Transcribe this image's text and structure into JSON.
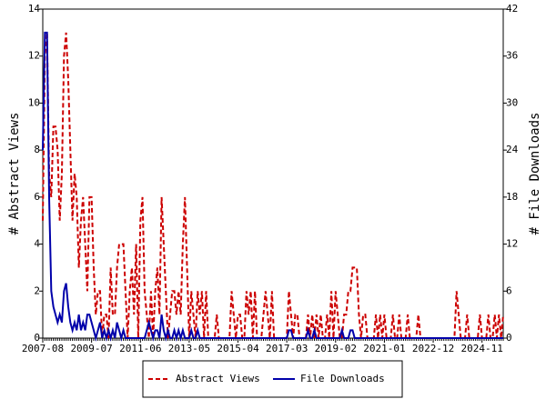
{
  "chart_data": {
    "type": "line",
    "categories": [
      "2007-08",
      null,
      null,
      null,
      null,
      null,
      null,
      null,
      null,
      null,
      null,
      null,
      null,
      null,
      null,
      null,
      null,
      null,
      null,
      null,
      null,
      null,
      null,
      "2009-07",
      null,
      null,
      null,
      null,
      null,
      null,
      null,
      null,
      null,
      null,
      null,
      null,
      null,
      null,
      null,
      null,
      null,
      null,
      null,
      null,
      null,
      null,
      "2011-06",
      null,
      null,
      null,
      null,
      null,
      null,
      null,
      null,
      null,
      null,
      null,
      null,
      null,
      null,
      null,
      null,
      null,
      null,
      null,
      null,
      null,
      null,
      "2013-05",
      null,
      null,
      null,
      null,
      null,
      null,
      null,
      null,
      null,
      null,
      null,
      null,
      null,
      null,
      null,
      null,
      null,
      null,
      null,
      null,
      null,
      null,
      "2015-04",
      null,
      null,
      null,
      null,
      null,
      null,
      null,
      null,
      null,
      null,
      null,
      null,
      null,
      null,
      null,
      null,
      null,
      null,
      null,
      null,
      null,
      null,
      "2017-03",
      null,
      null,
      null,
      null,
      null,
      null,
      null,
      null,
      null,
      null,
      null,
      null,
      null,
      null,
      null,
      null,
      null,
      null,
      null,
      null,
      null,
      null,
      "2019-02",
      null,
      null,
      null,
      null,
      null,
      null,
      null,
      null,
      null,
      null,
      null,
      null,
      null,
      null,
      null,
      null,
      null,
      null,
      null,
      null,
      null,
      null,
      "2021-01",
      null,
      null,
      null,
      null,
      null,
      null,
      null,
      null,
      null,
      null,
      null,
      null,
      null,
      null,
      null,
      null,
      null,
      null,
      null,
      null,
      null,
      null,
      "2022-12",
      null,
      null,
      null,
      null,
      null,
      null,
      null,
      null,
      null,
      null,
      null,
      null,
      null,
      null,
      null,
      null,
      null,
      null,
      null,
      null,
      null,
      null,
      "2024-11",
      null,
      null,
      null,
      null,
      null,
      null,
      null,
      null,
      null,
      null
    ],
    "series": [
      {
        "name": "Abstract Views",
        "color": "#cc0000",
        "dashed": true,
        "values": [
          5,
          12,
          13,
          7,
          6,
          9,
          9,
          8,
          5,
          7,
          12,
          13,
          11,
          8,
          5,
          7,
          6,
          3,
          5,
          6,
          4,
          2,
          6,
          6,
          3,
          1,
          2,
          2,
          0,
          1,
          1,
          0,
          3,
          1,
          1,
          3,
          4,
          4,
          4,
          2,
          0,
          2,
          3,
          1,
          4,
          0,
          5,
          6,
          2,
          1,
          0,
          2,
          0,
          2,
          3,
          1,
          6,
          4,
          2,
          0,
          1,
          2,
          2,
          1,
          2,
          1,
          4,
          6,
          3,
          0,
          2,
          1,
          0,
          2,
          1,
          2,
          0,
          2,
          0,
          0,
          0,
          0,
          1,
          0,
          0,
          0,
          0,
          0,
          0,
          2,
          1,
          0,
          1,
          1,
          0,
          0,
          2,
          1,
          2,
          0,
          2,
          0,
          0,
          0,
          1,
          2,
          1,
          0,
          2,
          0,
          0,
          0,
          0,
          0,
          0,
          0,
          2,
          1,
          0,
          1,
          1,
          0,
          0,
          0,
          0,
          1,
          0,
          1,
          0,
          1,
          0,
          1,
          0,
          0,
          1,
          0,
          2,
          0,
          2,
          1,
          0,
          0,
          1,
          1,
          2,
          2,
          3,
          3,
          3,
          1,
          0,
          1,
          1,
          0,
          0,
          0,
          0,
          1,
          0,
          1,
          0,
          1,
          0,
          0,
          0,
          1,
          0,
          0,
          1,
          0,
          0,
          0,
          1,
          0,
          0,
          0,
          0,
          1,
          0,
          0,
          0,
          0,
          0,
          0,
          0,
          0,
          0,
          0,
          0,
          0,
          0,
          0,
          0,
          0,
          0,
          2,
          1,
          0,
          0,
          0,
          1,
          0,
          0,
          0,
          0,
          0,
          1,
          0,
          0,
          0,
          1,
          0,
          0,
          1,
          0,
          1,
          0,
          1
        ]
      },
      {
        "name": "File Downloads",
        "color": "#0000aa",
        "axis": "y2",
        "values": [
          24,
          39,
          39,
          18,
          6,
          4,
          3,
          2,
          3,
          2,
          6,
          7,
          4,
          2,
          1,
          2,
          1,
          3,
          1,
          2,
          1,
          3,
          3,
          2,
          1,
          0,
          1,
          2,
          0,
          1,
          0,
          1,
          0,
          1,
          0,
          2,
          1,
          0,
          1,
          0,
          0,
          0,
          0,
          0,
          0,
          0,
          0,
          0,
          0,
          1,
          2,
          1,
          0,
          1,
          1,
          0,
          3,
          1,
          0,
          1,
          0,
          0,
          1,
          0,
          1,
          0,
          1,
          0,
          0,
          0,
          1,
          0,
          0,
          1,
          0,
          0,
          0,
          0,
          0,
          0,
          0,
          0,
          0,
          0,
          0,
          0,
          0,
          0,
          0,
          0,
          0,
          0,
          0,
          0,
          0,
          0,
          0,
          0,
          0,
          0,
          0,
          0,
          0,
          0,
          0,
          0,
          0,
          0,
          0,
          0,
          0,
          0,
          0,
          0,
          0,
          0,
          1,
          1,
          0,
          0,
          0,
          0,
          0,
          0,
          0,
          1,
          0,
          0,
          1,
          0,
          0,
          0,
          0,
          0,
          0,
          0,
          0,
          0,
          0,
          0,
          0,
          1,
          0,
          0,
          0,
          1,
          1,
          0,
          0,
          0,
          0,
          0,
          0,
          0,
          0,
          0,
          0,
          0,
          0,
          0,
          0,
          0,
          0,
          0,
          0,
          0,
          0,
          0,
          0,
          0,
          0,
          0,
          0,
          0,
          0,
          0,
          0,
          0,
          0,
          0,
          0,
          0,
          0,
          0,
          0,
          0,
          0,
          0,
          0,
          0,
          0,
          0,
          0,
          0,
          0,
          0,
          0,
          0,
          0,
          0,
          0,
          0,
          0,
          0,
          0,
          0,
          0,
          0,
          0,
          0,
          0,
          0,
          0,
          0,
          0,
          0,
          0,
          0
        ]
      }
    ],
    "ylabel": "# Abstract Views",
    "y2label": "# File Downloads",
    "ylim": [
      0,
      14
    ],
    "yticks": [
      0,
      2,
      4,
      6,
      8,
      10,
      12,
      14
    ],
    "y2lim": [
      0,
      42
    ],
    "y2ticks": [
      0,
      6,
      12,
      18,
      24,
      30,
      36,
      42
    ],
    "legend": "bottom"
  }
}
